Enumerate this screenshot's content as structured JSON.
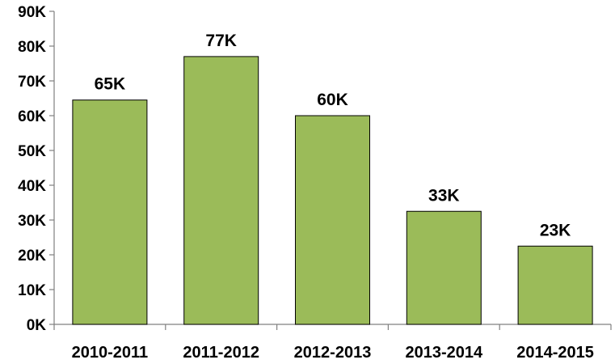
{
  "chart_data": {
    "type": "bar",
    "title": "",
    "xlabel": "",
    "ylabel": "",
    "categories": [
      "2010-2011",
      "2011-2012",
      "2012-2013",
      "2013-2014",
      "2014-2015"
    ],
    "values": [
      64.5,
      77.0,
      60.0,
      32.5,
      22.5
    ],
    "data_labels": [
      "65K",
      "77K",
      "60K",
      "33K",
      "23K"
    ],
    "ylim": [
      0,
      90
    ],
    "yticks": [
      0,
      10,
      20,
      30,
      40,
      50,
      60,
      70,
      80,
      90
    ],
    "ytick_labels": [
      "0K",
      "10K",
      "20K",
      "30K",
      "40K",
      "50K",
      "60K",
      "70K",
      "80K",
      "90K"
    ],
    "bar_color": "#9BBB59",
    "bar_edge_color": "#000000",
    "grid": false,
    "legend": "none"
  }
}
